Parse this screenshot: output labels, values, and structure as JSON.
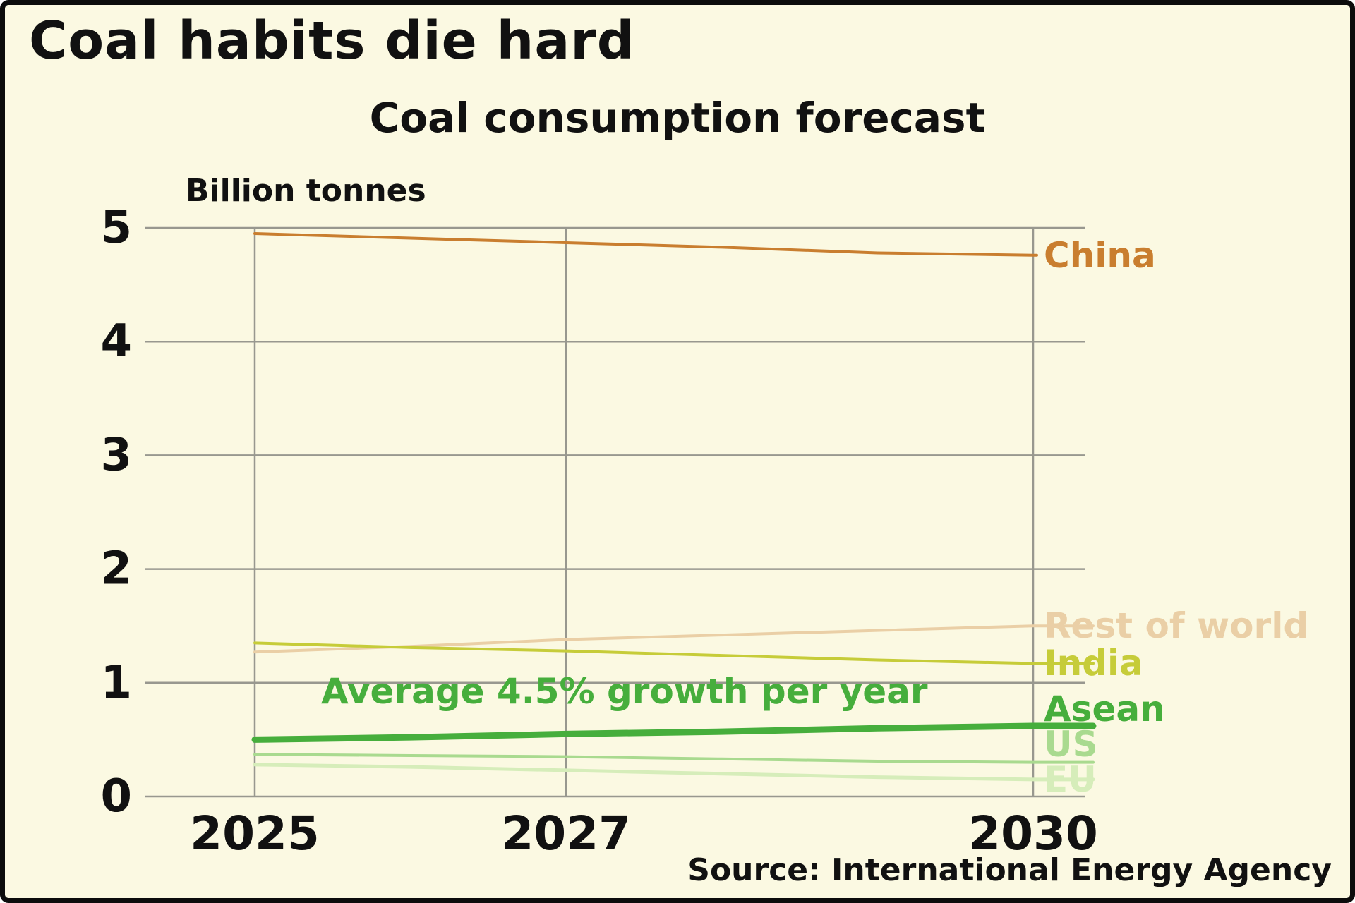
{
  "figure": {
    "title": "Coal habits die hard",
    "subtitle": "Coal consumption forecast",
    "source": "Source: International Energy Agency",
    "background": "#fbf9e2",
    "grid_color": "#98988f",
    "text_color": "#111111"
  },
  "chart_data": {
    "type": "line",
    "title": "Coal consumption forecast",
    "xlabel": "",
    "ylabel": "Billion tonnes",
    "x": [
      2025,
      2026,
      2027,
      2028,
      2029,
      2030
    ],
    "xticks": [
      2025,
      2027,
      2030
    ],
    "yticks": [
      0,
      1,
      2,
      3,
      4,
      5
    ],
    "xlim": [
      2025,
      2030
    ],
    "ylim": [
      0,
      5
    ],
    "grid": true,
    "legend_position": "right-end-labels",
    "annotation": {
      "text": "Average 4.5% growth per year",
      "series": "Asean",
      "color": "#46ae3c"
    },
    "series": [
      {
        "name": "China",
        "color": "#c97e2f",
        "width": 4,
        "values": [
          4.95,
          4.91,
          4.87,
          4.83,
          4.78,
          4.76
        ]
      },
      {
        "name": "Rest of world",
        "color": "#eacfa6",
        "width": 4,
        "values": [
          1.27,
          1.32,
          1.38,
          1.42,
          1.46,
          1.5
        ]
      },
      {
        "name": "India",
        "color": "#c6cc39",
        "width": 4,
        "values": [
          1.35,
          1.31,
          1.28,
          1.24,
          1.2,
          1.17
        ]
      },
      {
        "name": "Asean",
        "color": "#46ae3c",
        "width": 9,
        "values": [
          0.5,
          0.52,
          0.55,
          0.57,
          0.6,
          0.62
        ]
      },
      {
        "name": "US",
        "color": "#a9da8f",
        "width": 4,
        "values": [
          0.37,
          0.36,
          0.35,
          0.33,
          0.31,
          0.3
        ]
      },
      {
        "name": "EU",
        "color": "#d6edba",
        "width": 5,
        "values": [
          0.28,
          0.26,
          0.23,
          0.2,
          0.17,
          0.15
        ]
      }
    ]
  }
}
